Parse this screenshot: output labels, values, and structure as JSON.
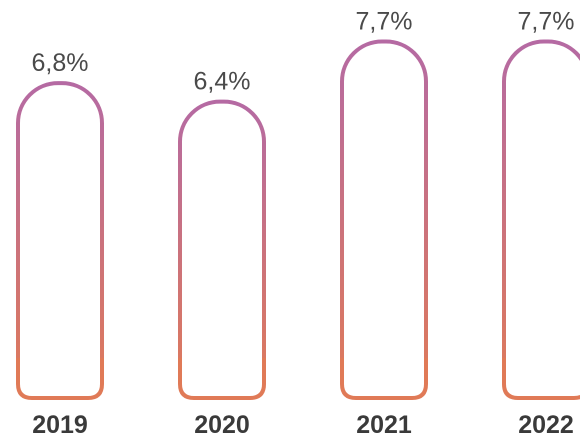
{
  "chart_data": {
    "type": "bar",
    "categories": [
      "2019",
      "2020",
      "2021",
      "2022"
    ],
    "values": [
      6.8,
      6.4,
      7.7,
      7.7
    ],
    "value_labels": [
      "6,8%",
      "6,4%",
      "7,7%",
      "7,7%"
    ],
    "title": "",
    "xlabel": "",
    "ylabel": "",
    "ylim": [
      0,
      8
    ],
    "grid": false,
    "legend": "none",
    "colors": {
      "bar_stroke_top": "#b56aa3",
      "bar_stroke_bottom": "#e07a57",
      "bar_fill": "#ffffff",
      "value_text": "#4a4a4a",
      "category_text": "#3a3a3a"
    }
  }
}
